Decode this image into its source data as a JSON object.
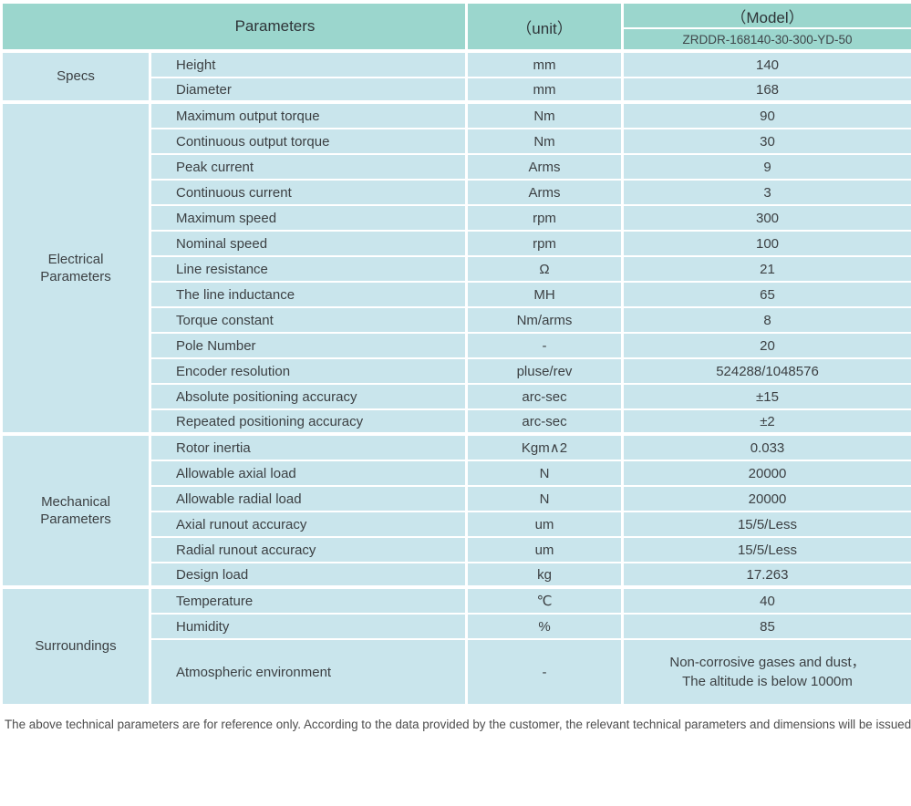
{
  "header": {
    "parameters_label": "Parameters",
    "unit_label": "（unit）",
    "model_label": "（Model）",
    "model_value": "ZRDDR-168140-30-300-YD-50"
  },
  "sections": [
    {
      "name": "Specs",
      "rows": [
        [
          "Height",
          "mm",
          "140"
        ],
        [
          "Diameter",
          "mm",
          "168"
        ]
      ]
    },
    {
      "name": "Electrical\nParameters",
      "rows": [
        [
          "Maximum output torque",
          "Nm",
          "90"
        ],
        [
          "Continuous output torque",
          "Nm",
          "30"
        ],
        [
          "Peak current",
          "Arms",
          "9"
        ],
        [
          "Continuous current",
          "Arms",
          "3"
        ],
        [
          "Maximum speed",
          "rpm",
          "300"
        ],
        [
          "Nominal speed",
          "rpm",
          "100"
        ],
        [
          "Line resistance",
          "Ω",
          "21"
        ],
        [
          "The line inductance",
          "MH",
          "65"
        ],
        [
          "Torque constant",
          "Nm/arms",
          "8"
        ],
        [
          "Pole Number",
          "-",
          "20"
        ],
        [
          "Encoder resolution",
          "pluse/rev",
          "524288/1048576"
        ],
        [
          "Absolute positioning accuracy",
          "arc-sec",
          "±15"
        ],
        [
          "Repeated positioning accuracy",
          "arc-sec",
          "±2"
        ]
      ]
    },
    {
      "name": "Mechanical\nParameters",
      "rows": [
        [
          "Rotor inertia",
          "Kgm∧2",
          "0.033"
        ],
        [
          "Allowable axial load",
          "N",
          "20000"
        ],
        [
          "Allowable radial load",
          "N",
          "20000"
        ],
        [
          "Axial runout accuracy",
          "um",
          "15/5/Less"
        ],
        [
          "Radial runout accuracy",
          "um",
          "15/5/Less"
        ],
        [
          "Design load",
          "kg",
          "17.263"
        ]
      ]
    },
    {
      "name": "Surroundings",
      "rows": [
        [
          "Temperature",
          "℃",
          "40"
        ],
        [
          "Humidity",
          "%",
          "85"
        ],
        [
          "Atmospheric environment",
          "-",
          "Non-corrosive gases and dust，\nThe altitude is below 1000m"
        ]
      ]
    }
  ],
  "footer": {
    "disclaimer": "The above technical parameters are for reference only. According to the data provided by the customer, the relevant technical parameters and dimensions will be issued."
  },
  "colors": {
    "header_bg": "#9bd6cd",
    "row_bg": "#c9e5ec",
    "grid": "#ffffff",
    "text": "#3c4043"
  }
}
